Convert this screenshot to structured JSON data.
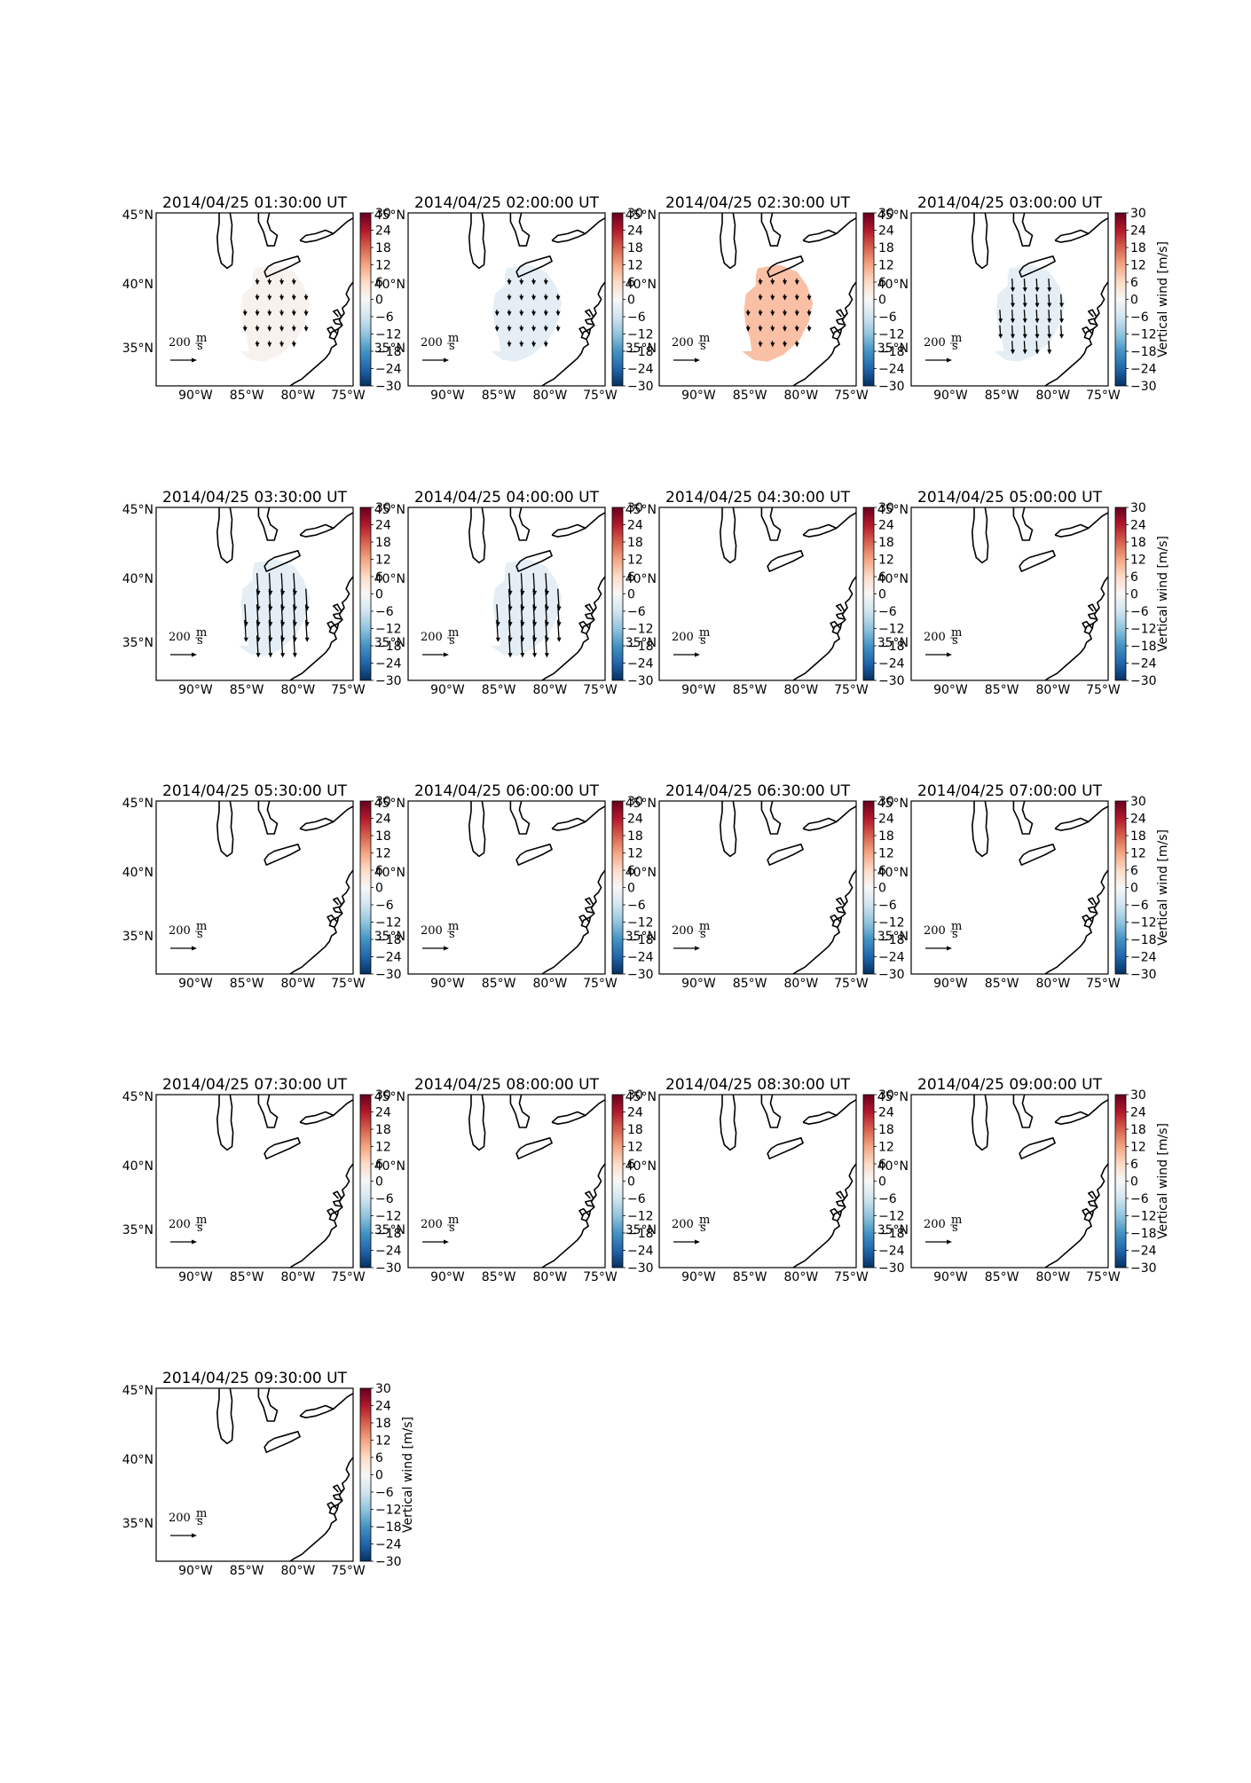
{
  "figure": {
    "panels": [
      {
        "title": "2014/04/25 01:30:00 UT",
        "vertical_wind_ms": 1,
        "vectors": "weak-south"
      },
      {
        "title": "2014/04/25 02:00:00 UT",
        "vertical_wind_ms": -3,
        "vectors": "weak-south"
      },
      {
        "title": "2014/04/25 02:30:00 UT",
        "vertical_wind_ms": 9,
        "vectors": "weak-south"
      },
      {
        "title": "2014/04/25 03:00:00 UT",
        "vertical_wind_ms": -3,
        "vectors": "medium-south"
      },
      {
        "title": "2014/04/25 03:30:00 UT",
        "vertical_wind_ms": -3,
        "vectors": "strong-south"
      },
      {
        "title": "2014/04/25 04:00:00 UT",
        "vertical_wind_ms": -3,
        "vectors": "strong-south"
      },
      {
        "title": "2014/04/25 04:30:00 UT",
        "vertical_wind_ms": null,
        "vectors": "none"
      },
      {
        "title": "2014/04/25 05:00:00 UT",
        "vertical_wind_ms": null,
        "vectors": "none"
      },
      {
        "title": "2014/04/25 05:30:00 UT",
        "vertical_wind_ms": null,
        "vectors": "none"
      },
      {
        "title": "2014/04/25 06:00:00 UT",
        "vertical_wind_ms": null,
        "vectors": "none"
      },
      {
        "title": "2014/04/25 06:30:00 UT",
        "vertical_wind_ms": null,
        "vectors": "none"
      },
      {
        "title": "2014/04/25 07:00:00 UT",
        "vertical_wind_ms": null,
        "vectors": "none"
      },
      {
        "title": "2014/04/25 07:30:00 UT",
        "vertical_wind_ms": null,
        "vectors": "none"
      },
      {
        "title": "2014/04/25 08:00:00 UT",
        "vertical_wind_ms": null,
        "vectors": "none"
      },
      {
        "title": "2014/04/25 08:30:00 UT",
        "vertical_wind_ms": null,
        "vectors": "none"
      },
      {
        "title": "2014/04/25 09:00:00 UT",
        "vertical_wind_ms": null,
        "vectors": "none"
      },
      {
        "title": "2014/04/25 09:30:00 UT",
        "vertical_wind_ms": null,
        "vectors": "none"
      }
    ],
    "lat_ticks": [
      "45°N",
      "40°N",
      "35°N"
    ],
    "lon_ticks": [
      "90°W",
      "85°W",
      "80°W",
      "75°W"
    ],
    "colorbar": {
      "ticks": [
        "30",
        "24",
        "18",
        "12",
        "6",
        "0",
        "−6",
        "−12",
        "−18",
        "−24",
        "−30"
      ],
      "label": "Vertical wind [m/s]",
      "range": [
        -30,
        30
      ],
      "colormap": "RdBu_r"
    },
    "scale_arrow": {
      "value": "200",
      "unit_num": "m",
      "unit_den": "s"
    }
  }
}
